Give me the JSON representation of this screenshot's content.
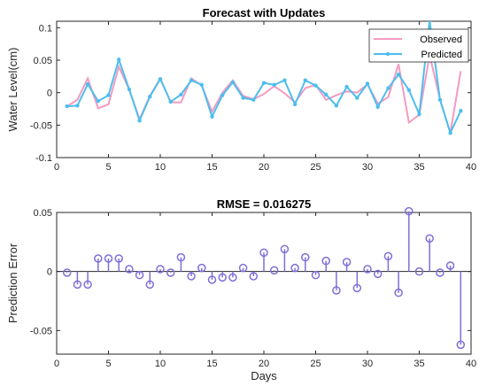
{
  "colors": {
    "observed": "#f49ac1",
    "predicted": "#4dbeee",
    "stem": "#7e6fd8",
    "axis": "#262626"
  },
  "chart_data": [
    {
      "type": "line",
      "title": "Forecast with Updates",
      "xlabel": "",
      "ylabel": "Water Level(cm)",
      "xlim": [
        0,
        40
      ],
      "ylim": [
        -0.1,
        0.11
      ],
      "xticks": [
        "0",
        "5",
        "10",
        "15",
        "20",
        "25",
        "30",
        "35",
        "40"
      ],
      "yticks": [
        "-0.1",
        "-0.05",
        "0",
        "0.05",
        "0.1"
      ],
      "legend_position": "top-right",
      "x": [
        1,
        2,
        3,
        4,
        5,
        6,
        7,
        8,
        9,
        10,
        11,
        12,
        13,
        14,
        15,
        16,
        17,
        18,
        19,
        20,
        21,
        22,
        23,
        24,
        25,
        26,
        27,
        28,
        29,
        30,
        31,
        32,
        33,
        34,
        35,
        36,
        37,
        38,
        39
      ],
      "series": [
        {
          "name": "Observed",
          "values": [
            -0.021,
            -0.011,
            0.022,
            -0.024,
            -0.018,
            0.04,
            0.005,
            -0.041,
            -0.005,
            0.022,
            -0.015,
            -0.015,
            0.022,
            0.011,
            -0.029,
            0.0,
            0.019,
            -0.005,
            -0.01,
            -0.002,
            0.01,
            -0.001,
            -0.015,
            0.007,
            0.012,
            -0.011,
            -0.004,
            0.002,
            0.0,
            0.013,
            -0.017,
            -0.007,
            0.044,
            -0.046,
            -0.034,
            0.058,
            -0.01,
            -0.062,
            0.033
          ]
        },
        {
          "name": "Predicted",
          "values": [
            -0.021,
            -0.02,
            0.013,
            -0.013,
            -0.004,
            0.051,
            0.005,
            -0.043,
            -0.006,
            0.021,
            -0.014,
            -0.003,
            0.019,
            0.012,
            -0.037,
            -0.004,
            0.016,
            -0.008,
            -0.011,
            0.015,
            0.012,
            0.019,
            -0.018,
            0.019,
            0.011,
            -0.003,
            -0.02,
            0.009,
            -0.008,
            0.014,
            -0.022,
            0.007,
            0.028,
            0.004,
            -0.033,
            0.111,
            -0.011,
            -0.062,
            -0.028
          ]
        }
      ]
    },
    {
      "type": "stem",
      "title": "RMSE = 0.016275",
      "xlabel": "Days",
      "ylabel": "Prediction Error",
      "xlim": [
        0,
        40
      ],
      "ylim": [
        -0.07,
        0.05
      ],
      "xticks": [
        "0",
        "5",
        "10",
        "15",
        "20",
        "25",
        "30",
        "35",
        "40"
      ],
      "yticks": [
        "-0.05",
        "0",
        "0.05"
      ],
      "x": [
        1,
        2,
        3,
        4,
        5,
        6,
        7,
        8,
        9,
        10,
        11,
        12,
        13,
        14,
        15,
        16,
        17,
        18,
        19,
        20,
        21,
        22,
        23,
        24,
        25,
        26,
        27,
        28,
        29,
        30,
        31,
        32,
        33,
        34,
        35,
        36,
        37,
        38,
        39
      ],
      "values": [
        -0.001,
        -0.011,
        -0.011,
        0.011,
        0.011,
        0.011,
        0.002,
        -0.003,
        -0.011,
        0.002,
        -0.001,
        0.012,
        -0.004,
        0.003,
        -0.007,
        -0.005,
        -0.005,
        0.003,
        -0.004,
        0.016,
        0.001,
        0.019,
        0.003,
        0.012,
        -0.003,
        0.009,
        -0.016,
        0.008,
        -0.014,
        0.002,
        -0.002,
        0.013,
        -0.018,
        0.051,
        0.0,
        0.028,
        -0.001,
        0.005,
        -0.062
      ]
    }
  ]
}
